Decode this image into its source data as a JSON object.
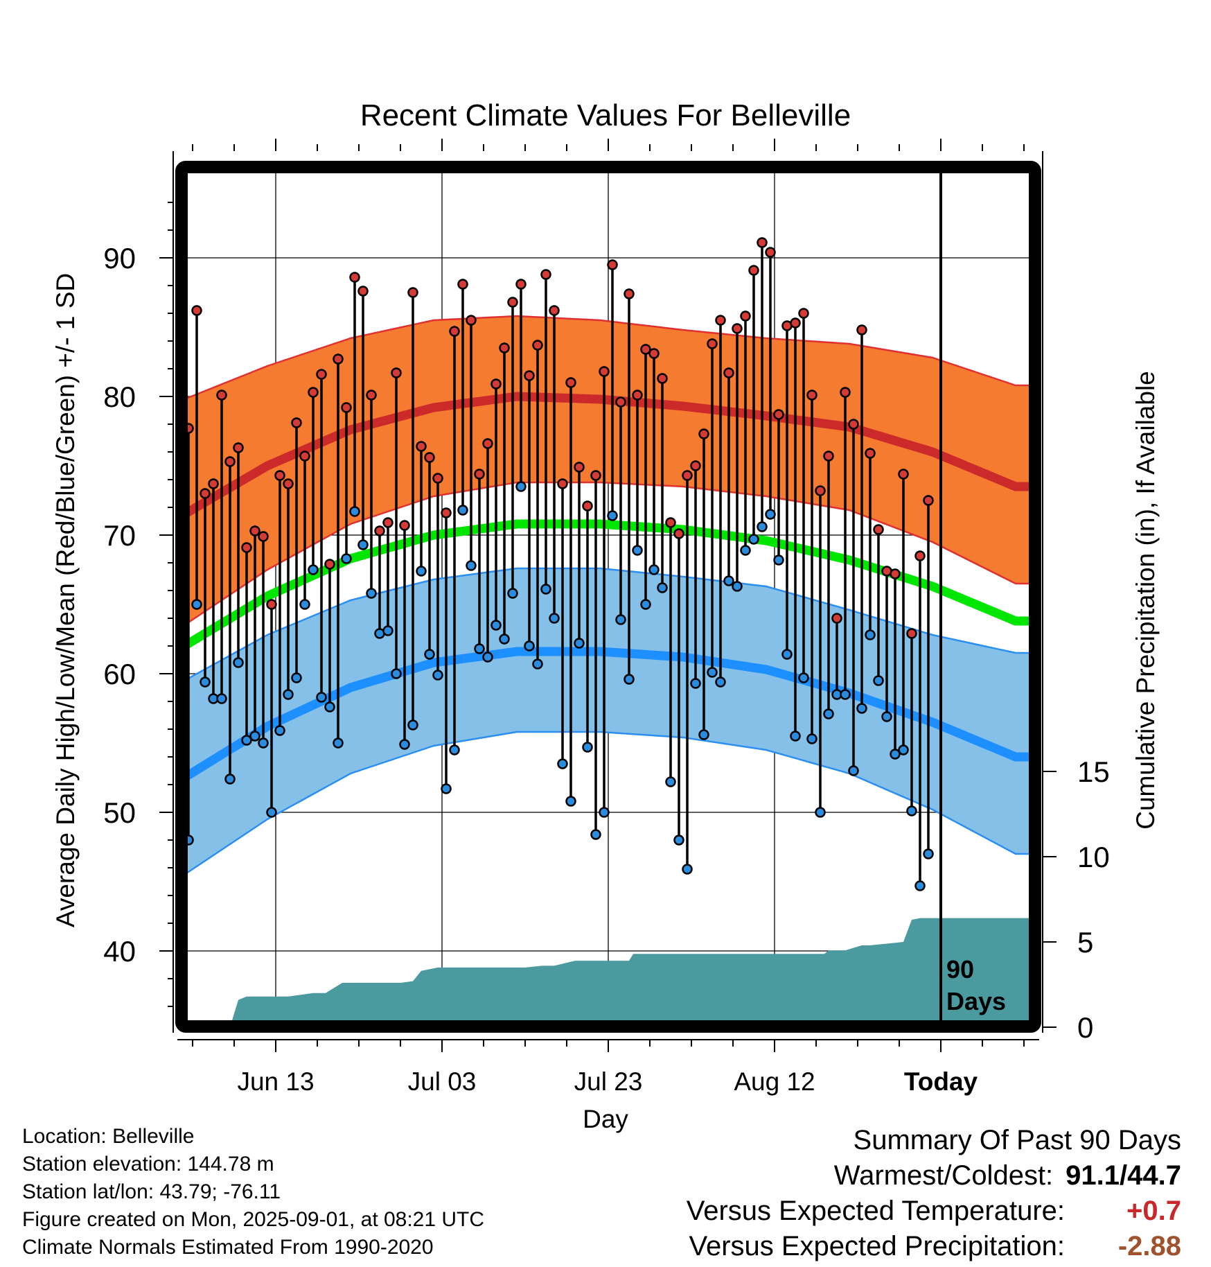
{
  "chart_data": {
    "type": "line",
    "title": "Recent Climate Values For Belleville",
    "xlabel": "Day",
    "ylabel": "Average Daily High/Low/Mean (Red/Blue/Green) +/- 1 SD",
    "y2label": "Cumulative Precipitation (in), If Available",
    "ylim": [
      35,
      96
    ],
    "y2lim": [
      0,
      20
    ],
    "xlim": [
      0,
      102
    ],
    "grid": true,
    "y_ticks": [
      "40",
      "50",
      "60",
      "70",
      "80",
      "90"
    ],
    "y2_ticks": [
      "0",
      "5",
      "10",
      "15"
    ],
    "x_ticks": [
      {
        "day": 11,
        "label": "Jun 13"
      },
      {
        "day": 31,
        "label": "Jul 03"
      },
      {
        "day": 51,
        "label": "Jul 23"
      },
      {
        "day": 71,
        "label": "Aug 12"
      },
      {
        "day": 91,
        "label": "Today"
      }
    ],
    "today_label": [
      "90",
      "Days"
    ],
    "normal_high": {
      "days": [
        0,
        10,
        20,
        30,
        40,
        50,
        60,
        70,
        80,
        90,
        100
      ],
      "mean": [
        71.5,
        75.0,
        77.6,
        79.2,
        80.0,
        79.8,
        79.3,
        78.6,
        77.8,
        76.0,
        73.5
      ],
      "upper": [
        79.8,
        82.2,
        84.2,
        85.5,
        85.8,
        85.5,
        84.8,
        84.2,
        83.8,
        82.8,
        80.8
      ],
      "lower": [
        63.5,
        67.5,
        70.8,
        72.8,
        73.8,
        73.8,
        73.5,
        72.8,
        71.8,
        69.5,
        66.5
      ]
    },
    "normal_low": {
      "days": [
        0,
        10,
        20,
        30,
        40,
        50,
        60,
        70,
        80,
        90,
        100
      ],
      "mean": [
        52.5,
        56.2,
        59.0,
        60.8,
        61.6,
        61.6,
        61.2,
        60.3,
        58.6,
        56.5,
        54.0
      ],
      "upper": [
        59.5,
        62.8,
        65.3,
        66.8,
        67.6,
        67.6,
        67.0,
        66.3,
        64.6,
        62.8,
        61.5
      ],
      "lower": [
        45.5,
        49.5,
        52.8,
        54.8,
        55.8,
        55.8,
        55.4,
        54.5,
        52.8,
        50.2,
        47.0
      ]
    },
    "normal_mean": {
      "days": [
        0,
        10,
        20,
        30,
        40,
        50,
        60,
        70,
        80,
        90,
        100
      ],
      "values": [
        62.0,
        65.6,
        68.3,
        70.0,
        70.8,
        70.8,
        70.4,
        69.6,
        68.2,
        66.3,
        63.8
      ]
    },
    "daily": {
      "highs": [
        77.7,
        86.2,
        73.0,
        73.7,
        80.1,
        75.3,
        76.3,
        69.1,
        70.3,
        69.9,
        65.0,
        74.3,
        73.7,
        78.1,
        75.7,
        80.3,
        81.6,
        67.9,
        82.7,
        79.2,
        88.6,
        87.6,
        80.1,
        70.3,
        70.9,
        81.7,
        70.7,
        87.5,
        76.4,
        75.6,
        74.1,
        71.6,
        84.7,
        88.1,
        85.5,
        74.4,
        76.6,
        80.9,
        83.5,
        86.8,
        88.1,
        81.5,
        83.7,
        88.8,
        86.2,
        73.7,
        81.0,
        74.9,
        72.1,
        74.3,
        81.8,
        89.5,
        79.6,
        87.4,
        80.1,
        83.4,
        83.1,
        81.3,
        70.9,
        70.1,
        74.3,
        75.0,
        77.3,
        83.8,
        85.5,
        81.7,
        84.9,
        85.8,
        89.1,
        91.1,
        90.4,
        78.7,
        85.1,
        85.3,
        86.0,
        80.1,
        73.2,
        75.7,
        64.0,
        80.3,
        78.0,
        84.8,
        75.9,
        70.4,
        67.4,
        67.2,
        74.4,
        62.9,
        68.5,
        72.5
      ],
      "lows": [
        48.0,
        65.0,
        59.4,
        58.2,
        58.2,
        52.4,
        60.8,
        55.2,
        55.5,
        55.0,
        50.0,
        55.9,
        58.5,
        59.7,
        65.0,
        67.5,
        58.3,
        57.6,
        55.0,
        68.3,
        71.7,
        69.3,
        65.8,
        62.9,
        63.1,
        60.0,
        54.9,
        56.3,
        67.4,
        61.4,
        59.9,
        51.7,
        54.5,
        71.8,
        67.8,
        61.8,
        61.2,
        63.5,
        62.5,
        65.8,
        73.5,
        62.0,
        60.7,
        66.1,
        64.0,
        53.5,
        50.8,
        62.2,
        54.7,
        48.4,
        50.0,
        71.4,
        63.9,
        59.6,
        68.9,
        65.0,
        67.5,
        66.2,
        52.2,
        48.0,
        45.9,
        59.3,
        55.6,
        60.1,
        59.4,
        66.7,
        66.3,
        68.9,
        69.7,
        70.6,
        71.5,
        68.2,
        61.4,
        55.5,
        59.7,
        55.3,
        50.0,
        57.1,
        58.5,
        58.5,
        53.0,
        57.5,
        62.8,
        59.5,
        56.9,
        54.2,
        54.5,
        50.1,
        44.7,
        47.0
      ]
    },
    "precip": {
      "days": [
        0,
        5.5,
        6.5,
        7.5,
        12.5,
        15.5,
        17.0,
        19.0,
        22.0,
        26.0,
        27.5,
        28.5,
        30.5,
        35.0,
        41.0,
        43.0,
        44.5,
        47.0,
        53.5,
        54.0,
        55.0,
        57.5,
        72.0,
        75.0,
        77.0,
        77.5,
        79.5,
        81.5,
        82.5,
        84.5,
        86.5,
        87.5,
        88.5,
        102.0
      ],
      "values": [
        0,
        0,
        1.6,
        1.8,
        1.8,
        2.0,
        2.0,
        2.6,
        2.6,
        2.6,
        2.7,
        3.3,
        3.5,
        3.5,
        3.5,
        3.6,
        3.6,
        3.9,
        3.9,
        4.3,
        4.3,
        4.3,
        4.3,
        4.3,
        4.3,
        4.5,
        4.5,
        4.8,
        4.8,
        4.9,
        5.0,
        6.3,
        6.4,
        6.4
      ]
    }
  },
  "info": {
    "location": "Location: Belleville",
    "elevation": "Station elevation: 144.78 m",
    "latlon": "Station lat/lon: 43.79; -76.11",
    "created": "Figure created on Mon, 2025-09-01, at 08:21 UTC",
    "normals": "Climate Normals Estimated From 1990-2020"
  },
  "summary": {
    "title": "Summary Of Past 90 Days",
    "warmest_coldest_label": "Warmest/Coldest:",
    "warmest_coldest_value": "91.1/44.7",
    "temp_label": "Versus Expected Temperature:",
    "temp_value": "+0.7",
    "temp_color": "#c8282a",
    "precip_label": "Versus Expected Precipitation:",
    "precip_value": "-2.88",
    "precip_color": "#a0522d"
  },
  "colors": {
    "high_band": "#f47b30",
    "high_mean": "#cc2a2a",
    "high_edge": "#e03030",
    "low_band": "#85c0e8",
    "low_mean": "#1e8fff",
    "low_edge": "#2a8ff0",
    "mean_line": "#00e600",
    "precip": "#4a9aa0",
    "high_dot": "#d63a35",
    "low_dot": "#2a8cde"
  }
}
